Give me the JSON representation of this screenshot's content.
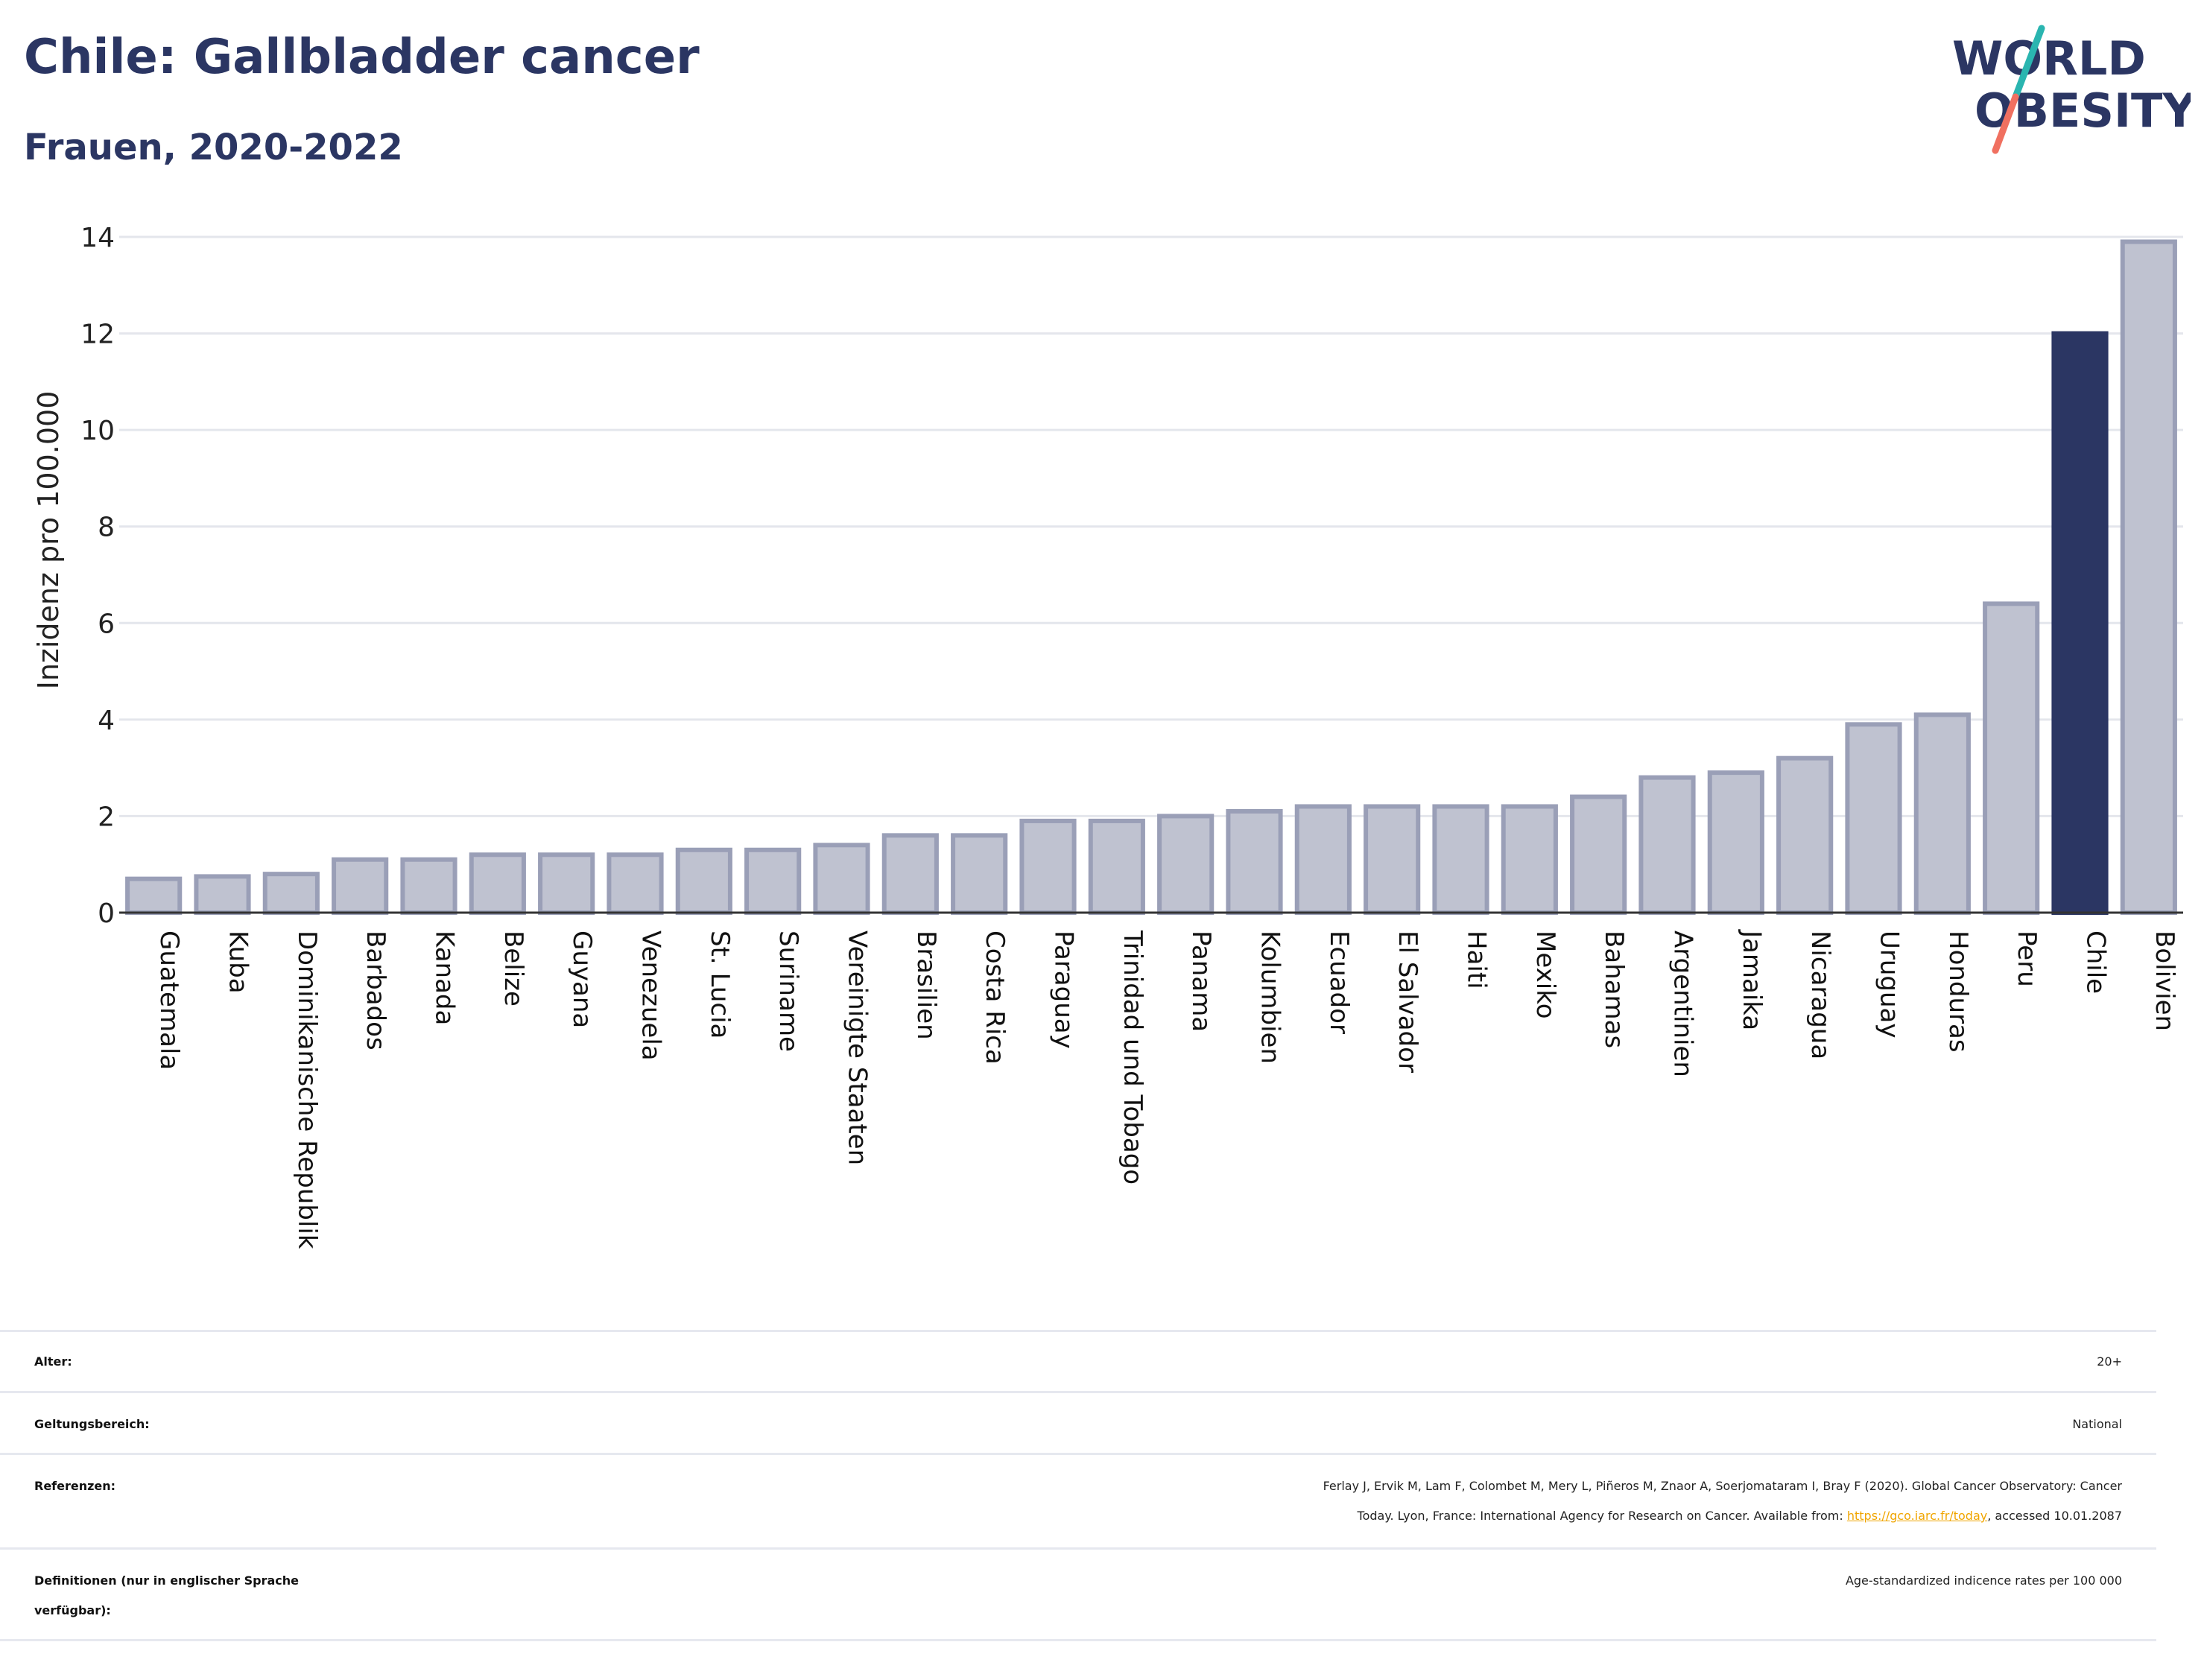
{
  "header": {
    "title": "Chile: Gallbladder cancer",
    "subtitle": "Frauen, 2020-2022",
    "logo_line1": "WORLD",
    "logo_line2": "OBESITY"
  },
  "colors": {
    "highlight": "#2b3663",
    "bar_fill": "#bfc2d0",
    "bar_stroke": "#9a9fb7",
    "title": "#2b3663",
    "link": "#f0a500",
    "logo_teal": "#2ab5b0",
    "logo_coral": "#f07060"
  },
  "chart_data": {
    "type": "bar",
    "ylabel": "Inzidenz pro 100.000",
    "ylim": [
      0,
      14
    ],
    "yticks": [
      0,
      2,
      4,
      6,
      8,
      10,
      12,
      14
    ],
    "grid": true,
    "highlight": "Chile",
    "categories": [
      "Guatemala",
      "Kuba",
      "Dominikanische Republik",
      "Barbados",
      "Kanada",
      "Belize",
      "Guyana",
      "Venezuela",
      "St. Lucia",
      "Suriname",
      "Vereinigte Staaten",
      "Brasilien",
      "Costa Rica",
      "Paraguay",
      "Trinidad und Tobago",
      "Panama",
      "Kolumbien",
      "Ecuador",
      "El Salvador",
      "Haiti",
      "Mexiko",
      "Bahamas",
      "Argentinien",
      "Jamaika",
      "Nicaragua",
      "Uruguay",
      "Honduras",
      "Peru",
      "Chile",
      "Bolivien"
    ],
    "values": [
      0.7,
      0.75,
      0.8,
      1.1,
      1.1,
      1.2,
      1.2,
      1.2,
      1.3,
      1.3,
      1.4,
      1.6,
      1.6,
      1.9,
      1.9,
      2.0,
      2.1,
      2.2,
      2.2,
      2.2,
      2.2,
      2.4,
      2.8,
      2.9,
      3.2,
      3.9,
      4.1,
      6.4,
      12.0,
      13.9
    ]
  },
  "meta": {
    "age_label": "Alter:",
    "age_value": "20+",
    "scope_label": "Geltungsbereich:",
    "scope_value": "National",
    "references_label": "Referenzen:",
    "references_line1": "Ferlay J, Ervik M, Lam F, Colombet M, Mery L, Piñeros M, Znaor A, Soerjomataram I, Bray F (2020). Global Cancer Observatory: Cancer",
    "references_line2_pre": "Today. Lyon, France: International Agency for Research on Cancer. Available from: ",
    "references_link": "https://gco.iarc.fr/today",
    "references_line2_post": ", accessed 10.01.2087",
    "definitions_label_line1": "Definitionen (nur in englischer Sprache",
    "definitions_label_line2": "verfügbar):",
    "definitions_value": "Age-standardized indicence rates per 100 000"
  }
}
